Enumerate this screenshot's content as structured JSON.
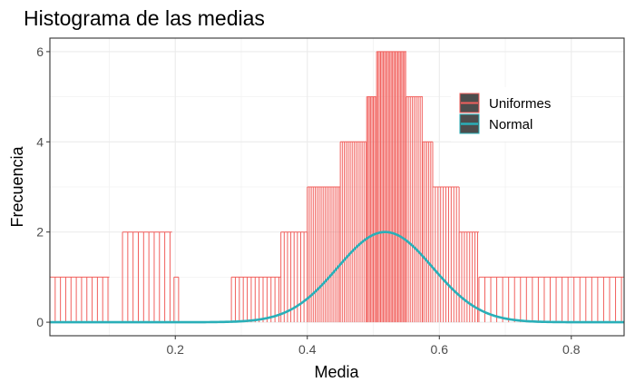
{
  "chart_data": {
    "type": "histogram",
    "title": "Histograma de las medias",
    "xlabel": "Media",
    "ylabel": "Frecuencia",
    "xlim": [
      0.01,
      0.88
    ],
    "ylim": [
      -0.3,
      6.3
    ],
    "x_ticks": [
      0.2,
      0.4,
      0.6,
      0.8
    ],
    "x_tick_labels": [
      "0.2",
      "0.4",
      "0.6",
      "0.8"
    ],
    "y_ticks": [
      0,
      2,
      4,
      6
    ],
    "y_tick_labels": [
      "0",
      "2",
      "4",
      "6"
    ],
    "grid": true,
    "legend_position": "top-right",
    "series": [
      {
        "name": "Uniformes",
        "color": "#F1605D",
        "kind": "spikes",
        "bins": [
          {
            "range": [
              0.01,
              0.1
            ],
            "step": 0.008,
            "count": 1
          },
          {
            "range": [
              0.12,
              0.195
            ],
            "step": 0.008,
            "count": 2
          },
          {
            "range": [
              0.198,
              0.205
            ],
            "step": 0.007,
            "count": 1
          },
          {
            "range": [
              0.285,
              0.36
            ],
            "step": 0.006,
            "count": 1
          },
          {
            "range": [
              0.36,
              0.4
            ],
            "step": 0.005,
            "count": 2
          },
          {
            "range": [
              0.4,
              0.45
            ],
            "step": 0.003,
            "count": 3
          },
          {
            "range": [
              0.45,
              0.49
            ],
            "step": 0.003,
            "count": 4
          },
          {
            "range": [
              0.49,
              0.505
            ],
            "step": 0.002,
            "count": 5
          },
          {
            "range": [
              0.505,
              0.55
            ],
            "step": 0.002,
            "count": 6
          },
          {
            "range": [
              0.55,
              0.575
            ],
            "step": 0.003,
            "count": 5
          },
          {
            "range": [
              0.575,
              0.59
            ],
            "step": 0.003,
            "count": 4
          },
          {
            "range": [
              0.59,
              0.63
            ],
            "step": 0.004,
            "count": 3
          },
          {
            "range": [
              0.63,
              0.66
            ],
            "step": 0.004,
            "count": 2
          },
          {
            "range": [
              0.66,
              0.88
            ],
            "step": 0.009,
            "count": 1
          }
        ]
      },
      {
        "name": "Normal",
        "color": "#2AAFB8",
        "kind": "curve",
        "mean": 0.518,
        "sd": 0.072,
        "peak": 2.0
      }
    ]
  }
}
